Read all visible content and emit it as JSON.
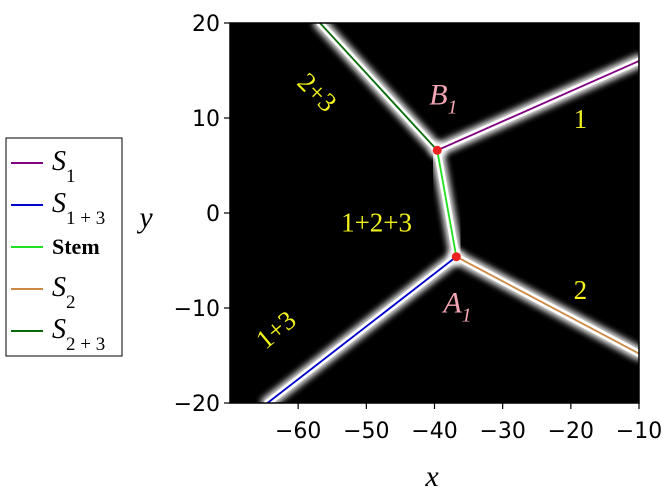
{
  "chart_data": {
    "type": "line",
    "xlabel": "x",
    "ylabel": "y",
    "xlim": [
      -70,
      -10
    ],
    "ylim": [
      -20,
      20
    ],
    "x_ticks": [
      {
        "value": -60,
        "label": "−60"
      },
      {
        "value": -50,
        "label": "−50"
      },
      {
        "value": -40,
        "label": "−40"
      },
      {
        "value": -30,
        "label": "−30"
      },
      {
        "value": -20,
        "label": "−20"
      },
      {
        "value": -10,
        "label": "−10"
      }
    ],
    "y_ticks": [
      {
        "value": 20,
        "label": "20"
      },
      {
        "value": 10,
        "label": "10"
      },
      {
        "value": 0,
        "label": "0"
      },
      {
        "value": -10,
        "label": "−10"
      },
      {
        "value": -20,
        "label": "−20"
      }
    ],
    "background": "#000000",
    "series": [
      {
        "name": "S",
        "sub": "1",
        "color": "#800080",
        "x": [
          -39.6,
          -10
        ],
        "y": [
          6.6,
          16
        ]
      },
      {
        "name": "S",
        "sub": "1 + 3",
        "color": "#0000cc",
        "x": [
          -36.8,
          -64.5
        ],
        "y": [
          -4.6,
          -20
        ]
      },
      {
        "name": "Stem",
        "sub": "",
        "color": "#22e022",
        "x": [
          -39.6,
          -36.8
        ],
        "y": [
          6.6,
          -4.6
        ]
      },
      {
        "name": "S",
        "sub": "2",
        "color": "#cc8844",
        "x": [
          -36.8,
          -10
        ],
        "y": [
          -4.6,
          -14.8
        ]
      },
      {
        "name": "S",
        "sub": "2 + 3",
        "color": "#0a6a0a",
        "x": [
          -39.6,
          -56.8
        ],
        "y": [
          6.6,
          20
        ]
      }
    ],
    "points": [
      {
        "name": "B",
        "sub": "1",
        "x": -39.6,
        "y": 6.6,
        "color": "#ee2222"
      },
      {
        "name": "A",
        "sub": "1",
        "x": -36.8,
        "y": -4.6,
        "color": "#ee2222"
      }
    ],
    "region_labels": [
      {
        "text": "2+3",
        "x": -57.5,
        "y": 12.5,
        "rotate": 45
      },
      {
        "text": "1",
        "x": -18.6,
        "y": 9.6,
        "rotate": 0
      },
      {
        "text": "1+2+3",
        "x": -48.5,
        "y": -1.3,
        "rotate": 0
      },
      {
        "text": "2",
        "x": -18.6,
        "y": -8.4,
        "rotate": 0
      },
      {
        "text": "1+3",
        "x": -63,
        "y": -12.5,
        "rotate": -40
      }
    ]
  }
}
